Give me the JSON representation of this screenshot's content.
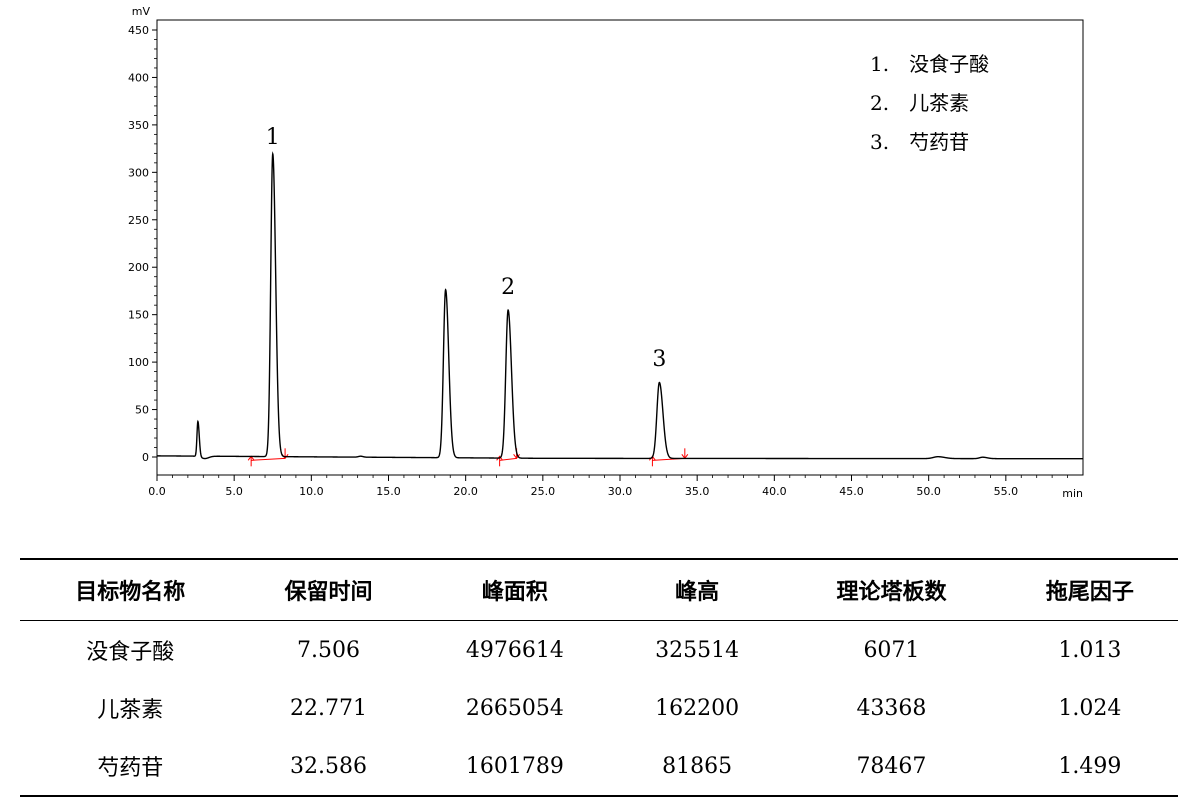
{
  "chart_data": {
    "type": "line",
    "ylabel": "mV",
    "xlabel": "min",
    "xlim": [
      0,
      60
    ],
    "ylim": [
      -20,
      460
    ],
    "xticks": [
      0,
      5,
      10,
      15,
      20,
      25,
      30,
      35,
      40,
      45,
      50,
      55
    ],
    "xtick_labels": [
      "0.0",
      "5.0",
      "10.0",
      "15.0",
      "20.0",
      "25.0",
      "30.0",
      "35.0",
      "40.0",
      "45.0",
      "50.0",
      "55.0"
    ],
    "yticks": [
      0,
      50,
      100,
      150,
      200,
      250,
      300,
      350,
      400,
      450
    ],
    "ytick_labels": [
      "0",
      "50",
      "100",
      "150",
      "200",
      "250",
      "300",
      "350",
      "400",
      "450"
    ],
    "peaks": [
      {
        "t": 2.65,
        "h": 37,
        "w": 0.06
      },
      {
        "t": 7.5,
        "h": 319,
        "w": 0.13
      },
      {
        "t": 18.7,
        "h": 177,
        "w": 0.14
      },
      {
        "t": 22.75,
        "h": 156,
        "w": 0.15
      },
      {
        "t": 32.55,
        "h": 80,
        "w": 0.16
      },
      {
        "t": 50.6,
        "h": 2,
        "w": 0.3
      },
      {
        "t": 53.5,
        "h": 1.5,
        "w": 0.2
      }
    ],
    "peak_labels": [
      {
        "text": "1",
        "x": 7.5,
        "y": 330
      },
      {
        "text": "2",
        "x": 22.75,
        "y": 172
      },
      {
        "text": "3",
        "x": 32.55,
        "y": 96
      }
    ],
    "integration_markers": [
      {
        "start": 6.1,
        "end": 8.3
      },
      {
        "start": 22.2,
        "end": 23.3
      },
      {
        "start": 32.1,
        "end": 34.2
      }
    ],
    "legend": [
      "1.　没食子酸",
      "2.　儿茶素",
      "3.　芍药苷"
    ],
    "legend_placement": "top-right",
    "colors": {
      "trace": "#000000",
      "integration": "#ff0000"
    }
  },
  "table": {
    "headers": [
      "目标物名称",
      "保留时间",
      "峰面积",
      "峰高",
      "理论塔板数",
      "拖尾因子"
    ],
    "rows": [
      [
        "没食子酸",
        "7.506",
        "4976614",
        "325514",
        "6071",
        "1.013"
      ],
      [
        "儿茶素",
        "22.771",
        "2665054",
        "162200",
        "43368",
        "1.024"
      ],
      [
        "芍药苷",
        "32.586",
        "1601789",
        "81865",
        "78467",
        "1.499"
      ]
    ]
  }
}
